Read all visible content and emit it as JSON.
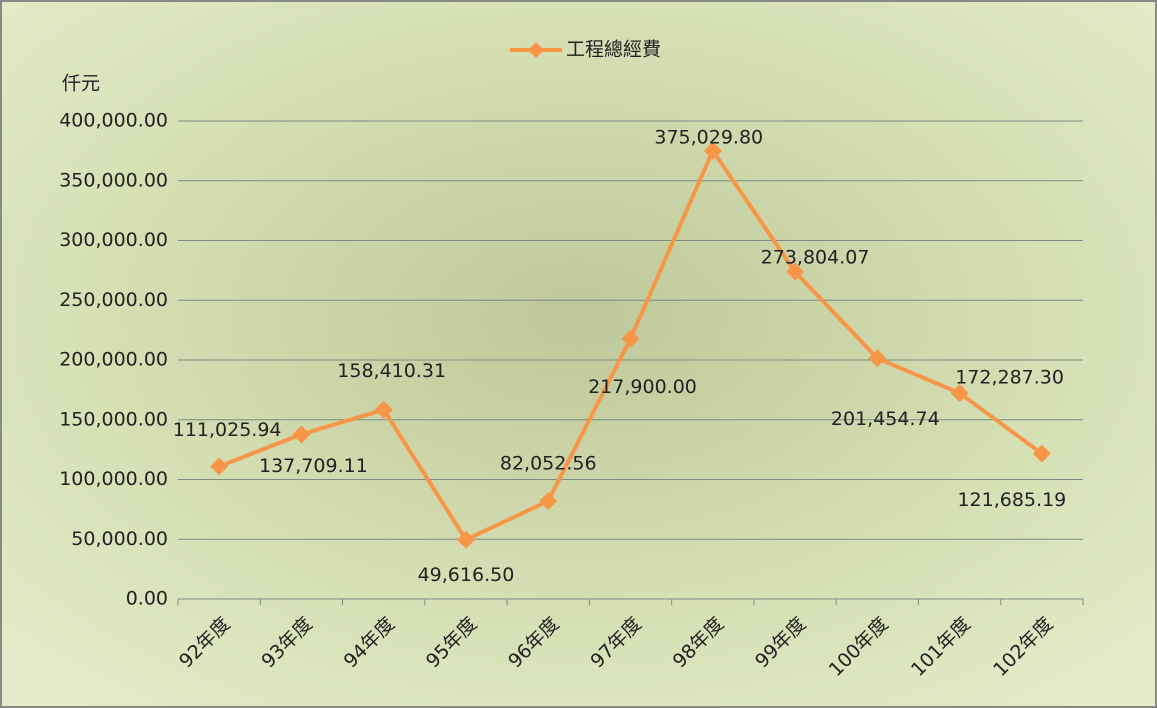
{
  "chart_data": {
    "type": "line",
    "y_axis_label": "仟元",
    "categories": [
      "92年度",
      "93年度",
      "94年度",
      "95年度",
      "96年度",
      "97年度",
      "98年度",
      "99年度",
      "100年度",
      "101年度",
      "102年度"
    ],
    "series": [
      {
        "name": "工程總經費",
        "color": "#f79646",
        "values": [
          111025.94,
          137709.11,
          158410.31,
          49616.5,
          82052.56,
          217900,
          375029.8,
          273804.07,
          201454.74,
          172287.3,
          121685.19
        ],
        "value_labels": [
          "111,025.94",
          "137,709.11",
          "158,410.31",
          "49,616.50",
          "82,052.56",
          "217,900.00",
          "375,029.80",
          "273,804.07",
          "201,454.74",
          "172,287.30",
          "121,685.19"
        ]
      }
    ],
    "ylim": [
      0,
      400000
    ],
    "yticks": [
      {
        "value": 0,
        "label": "0.00"
      },
      {
        "value": 50000,
        "label": "50,000.00"
      },
      {
        "value": 100000,
        "label": "100,000.00"
      },
      {
        "value": 150000,
        "label": "150,000.00"
      },
      {
        "value": 200000,
        "label": "200,000.00"
      },
      {
        "value": 250000,
        "label": "250,000.00"
      },
      {
        "value": 300000,
        "label": "300,000.00"
      },
      {
        "value": 350000,
        "label": "350,000.00"
      },
      {
        "value": 400000,
        "label": "400,000.00"
      }
    ],
    "grid": true,
    "legend": "top"
  }
}
